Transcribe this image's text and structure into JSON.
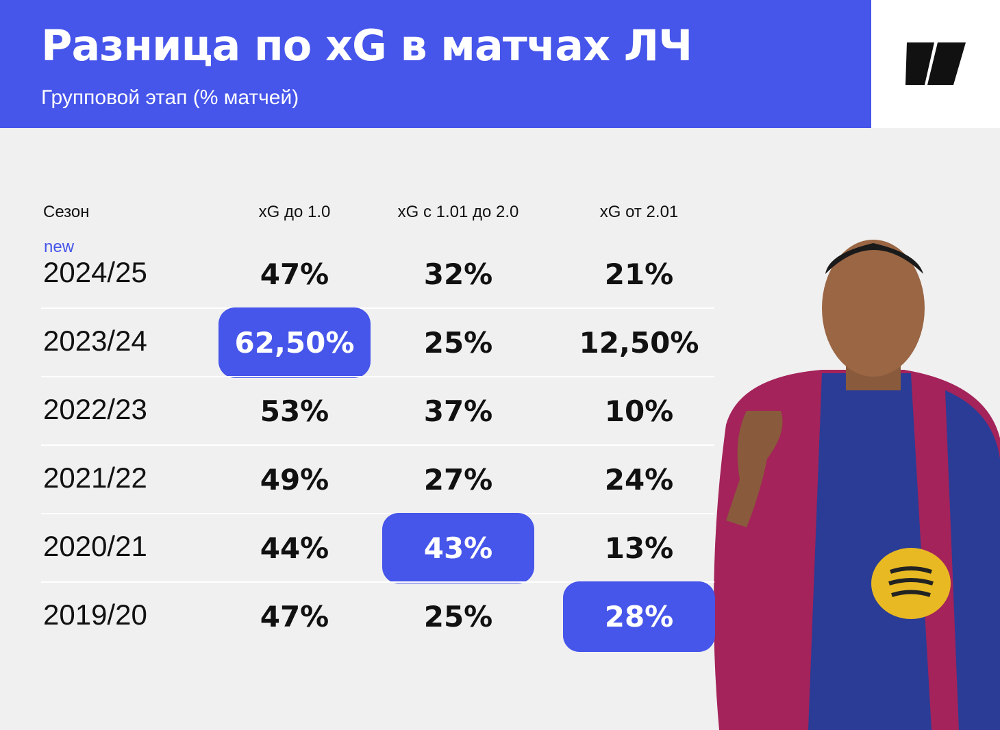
{
  "header": {
    "title": "Разница по xG в матчах ЛЧ",
    "subtitle": "Групповой этап (% матчей)"
  },
  "table": {
    "columns": [
      "Сезон",
      "xG до 1.0",
      "xG с 1.01 до 2.0",
      "xG от 2.01"
    ],
    "rows": [
      {
        "tag": "new",
        "season": "2024/25",
        "cells": [
          {
            "text": "47%",
            "highlight": false
          },
          {
            "text": "32%",
            "highlight": false
          },
          {
            "text": "21%",
            "highlight": false
          }
        ]
      },
      {
        "season": "2023/24",
        "cells": [
          {
            "text": "62,50%",
            "highlight": true
          },
          {
            "text": "25%",
            "highlight": false
          },
          {
            "text": "12,50%",
            "highlight": false
          }
        ]
      },
      {
        "season": "2022/23",
        "cells": [
          {
            "text": "53%",
            "highlight": false
          },
          {
            "text": "37%",
            "highlight": false
          },
          {
            "text": "10%",
            "highlight": false
          }
        ]
      },
      {
        "season": "2021/22",
        "cells": [
          {
            "text": "49%",
            "highlight": false
          },
          {
            "text": "27%",
            "highlight": false
          },
          {
            "text": "24%",
            "highlight": false
          }
        ]
      },
      {
        "season": "2020/21",
        "cells": [
          {
            "text": "44%",
            "highlight": false
          },
          {
            "text": "43%",
            "highlight": true
          },
          {
            "text": "13%",
            "highlight": false
          }
        ]
      },
      {
        "season": "2019/20",
        "cells": [
          {
            "text": "47%",
            "highlight": false
          },
          {
            "text": "25%",
            "highlight": false
          },
          {
            "text": "28%",
            "highlight": true
          }
        ]
      }
    ]
  }
}
